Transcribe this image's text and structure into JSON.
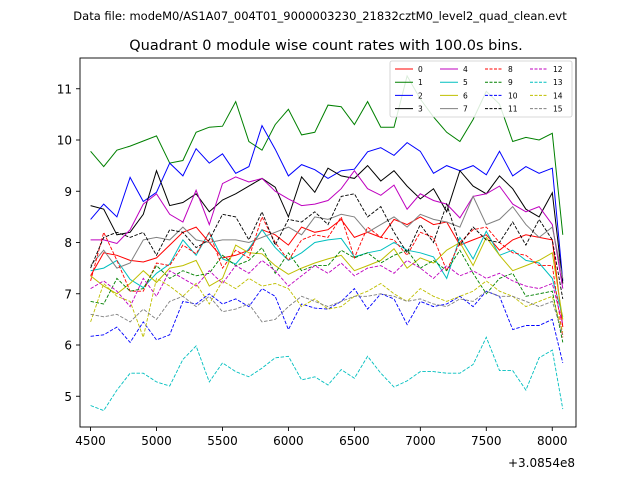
{
  "suptitle": "Data file: modeM0/AS1A07_004T01_9000003230_21832cztM0_level2_quad_clean.evt",
  "chart_data": {
    "type": "line",
    "title": "Quadrant 0 module wise count rates with 100.0s bins.",
    "xlabel": "",
    "ylabel": "",
    "x_offset_label": "+3.0854e8",
    "xlim": [
      4420,
      8180
    ],
    "ylim": [
      4.4,
      11.6
    ],
    "xticks": [
      4500,
      5000,
      5500,
      6000,
      6500,
      7000,
      7500,
      8000
    ],
    "yticks": [
      5,
      6,
      7,
      8,
      9,
      10,
      11
    ],
    "legend_position": "upper-right",
    "legend_columns": 4,
    "x": [
      4500,
      4600,
      4700,
      4800,
      4900,
      5000,
      5100,
      5200,
      5300,
      5400,
      5500,
      5600,
      5700,
      5800,
      5900,
      6000,
      6100,
      6200,
      6300,
      6400,
      6500,
      6600,
      6700,
      6800,
      6900,
      7000,
      7100,
      7200,
      7300,
      7400,
      7500,
      7600,
      7700,
      7800,
      7900,
      8000,
      8080
    ],
    "series": [
      {
        "name": "0",
        "color": "#ff0000",
        "dash": "solid",
        "values": [
          7.35,
          7.8,
          7.75,
          7.65,
          7.62,
          7.7,
          7.95,
          8.2,
          8.3,
          8.0,
          7.7,
          7.75,
          7.85,
          8.25,
          8.15,
          7.95,
          8.3,
          8.2,
          8.25,
          8.45,
          8.1,
          8.2,
          8.1,
          8.45,
          8.35,
          8.5,
          8.35,
          8.4,
          7.95,
          8.05,
          8.15,
          7.85,
          8.05,
          8.15,
          8.1,
          8.05,
          6.35
        ]
      },
      {
        "name": "1",
        "color": "#008000",
        "dash": "solid",
        "values": [
          9.78,
          9.48,
          9.8,
          9.88,
          9.98,
          10.08,
          9.55,
          9.6,
          10.15,
          10.25,
          10.27,
          10.75,
          9.97,
          9.8,
          10.3,
          10.6,
          10.1,
          10.15,
          10.68,
          10.65,
          10.3,
          10.75,
          10.25,
          10.25,
          11.25,
          10.8,
          10.45,
          10.15,
          9.97,
          10.4,
          10.95,
          10.7,
          9.97,
          10.05,
          10.0,
          10.13,
          8.15
        ]
      },
      {
        "name": "2",
        "color": "#0000ff",
        "dash": "solid",
        "values": [
          8.45,
          8.75,
          8.5,
          9.27,
          8.8,
          8.98,
          9.55,
          9.3,
          9.83,
          9.55,
          9.73,
          9.35,
          9.48,
          10.28,
          9.82,
          9.3,
          9.52,
          9.42,
          9.25,
          9.4,
          9.43,
          9.77,
          9.85,
          9.7,
          9.95,
          9.78,
          9.35,
          9.5,
          9.4,
          9.5,
          9.32,
          9.78,
          9.3,
          9.48,
          9.35,
          9.45,
          7.25
        ]
      },
      {
        "name": "3",
        "color": "#000000",
        "dash": "solid",
        "values": [
          8.72,
          8.65,
          8.15,
          8.2,
          8.55,
          9.4,
          8.72,
          8.78,
          8.95,
          8.6,
          8.83,
          8.95,
          9.1,
          9.25,
          9.08,
          8.5,
          9.28,
          8.98,
          9.45,
          9.3,
          9.25,
          9.5,
          9.2,
          9.4,
          9.1,
          8.85,
          9.05,
          8.6,
          9.4,
          9.1,
          8.95,
          9.3,
          9.05,
          8.65,
          8.5,
          8.97,
          7.2
        ]
      },
      {
        "name": "4",
        "color": "#bf00bf",
        "dash": "solid",
        "values": [
          8.05,
          8.05,
          7.98,
          8.25,
          8.75,
          8.95,
          8.55,
          8.4,
          9.02,
          8.35,
          9.15,
          9.28,
          9.18,
          9.25,
          9.0,
          8.85,
          8.72,
          8.75,
          8.82,
          9.05,
          9.4,
          9.05,
          8.92,
          9.12,
          8.65,
          8.95,
          8.82,
          8.75,
          8.48,
          8.9,
          8.95,
          9.1,
          8.75,
          8.6,
          8.7,
          8.35,
          7.1
        ]
      },
      {
        "name": "5",
        "color": "#00bfbf",
        "dash": "solid",
        "values": [
          7.45,
          7.5,
          7.65,
          7.28,
          7.12,
          7.4,
          7.58,
          8.05,
          7.75,
          8.2,
          7.68,
          7.58,
          7.88,
          8.25,
          7.9,
          7.65,
          7.8,
          8.0,
          8.05,
          8.08,
          7.72,
          7.8,
          7.85,
          8.0,
          7.85,
          7.8,
          7.72,
          7.3,
          8.1,
          7.68,
          8.22,
          7.75,
          7.85,
          7.65,
          7.6,
          7.3,
          6.55
        ]
      },
      {
        "name": "6",
        "color": "#bfbf00",
        "dash": "solid",
        "values": [
          7.35,
          7.15,
          7.0,
          7.2,
          7.45,
          7.22,
          7.5,
          7.55,
          7.65,
          7.15,
          7.3,
          7.95,
          7.8,
          7.78,
          7.55,
          7.38,
          7.5,
          7.6,
          7.68,
          7.75,
          7.45,
          7.55,
          7.65,
          7.88,
          7.5,
          7.7,
          7.6,
          7.85,
          8.0,
          7.55,
          8.1,
          7.75,
          7.45,
          7.55,
          7.65,
          7.8,
          6.5
        ]
      },
      {
        "name": "7",
        "color": "#808080",
        "dash": "solid",
        "values": [
          7.55,
          7.85,
          7.5,
          7.6,
          8.05,
          8.1,
          8.05,
          8.3,
          8.05,
          8.0,
          8.05,
          8.05,
          8.0,
          8.1,
          8.2,
          8.3,
          8.15,
          8.5,
          8.45,
          8.55,
          8.5,
          8.2,
          8.35,
          8.5,
          8.3,
          8.55,
          8.45,
          8.4,
          8.3,
          8.9,
          8.35,
          8.45,
          8.7,
          8.35,
          8.1,
          8.3,
          7.3
        ]
      },
      {
        "name": "8",
        "color": "#ff0000",
        "dash": "dashed",
        "values": [
          7.25,
          8.2,
          7.65,
          7.05,
          7.05,
          7.6,
          7.55,
          7.95,
          7.78,
          8.2,
          7.5,
          7.85,
          7.7,
          8.5,
          8.0,
          7.65,
          8.05,
          8.15,
          8.1,
          8.5,
          7.7,
          8.3,
          8.1,
          8.05,
          7.75,
          8.2,
          8.1,
          7.45,
          8.0,
          8.25,
          8.3,
          8.0,
          7.8,
          7.75,
          7.55,
          7.55,
          6.15
        ]
      },
      {
        "name": "9",
        "color": "#008000",
        "dash": "dashed",
        "values": [
          6.85,
          6.8,
          7.3,
          7.05,
          7.1,
          7.55,
          7.3,
          7.45,
          7.35,
          7.4,
          7.75,
          7.55,
          7.65,
          7.9,
          7.4,
          7.8,
          7.45,
          7.55,
          7.55,
          7.85,
          7.7,
          7.8,
          7.6,
          7.75,
          7.85,
          7.5,
          7.65,
          7.45,
          7.85,
          7.4,
          7.0,
          7.3,
          7.4,
          6.95,
          7.0,
          7.05,
          6.05
        ]
      },
      {
        "name": "10",
        "color": "#0000ff",
        "dash": "dashed",
        "values": [
          6.17,
          6.2,
          6.35,
          6.05,
          6.45,
          6.1,
          6.2,
          6.85,
          6.8,
          7.0,
          6.8,
          6.9,
          6.75,
          7.1,
          6.95,
          6.3,
          6.8,
          6.72,
          6.7,
          6.85,
          7.1,
          6.7,
          7.0,
          6.9,
          6.4,
          6.85,
          6.75,
          6.8,
          6.95,
          6.75,
          7.05,
          6.95,
          6.3,
          6.38,
          6.38,
          6.5,
          5.65
        ]
      },
      {
        "name": "11",
        "color": "#000000",
        "dash": "dashed",
        "values": [
          7.5,
          8.1,
          8.2,
          8.1,
          8.2,
          7.75,
          8.25,
          8.2,
          7.9,
          8.05,
          8.55,
          8.5,
          8.05,
          8.6,
          7.95,
          8.45,
          8.4,
          8.6,
          8.35,
          8.9,
          8.95,
          8.5,
          8.7,
          8.2,
          7.8,
          8.35,
          8.0,
          8.75,
          7.95,
          8.3,
          8.05,
          8.0,
          8.4,
          7.95,
          8.45,
          8.05,
          6.9
        ]
      },
      {
        "name": "12",
        "color": "#bf00bf",
        "dash": "dashed",
        "values": [
          7.1,
          7.25,
          7.05,
          6.75,
          7.3,
          6.95,
          7.45,
          7.3,
          7.15,
          7.45,
          7.2,
          7.55,
          7.4,
          7.65,
          7.45,
          7.15,
          7.35,
          7.55,
          7.4,
          7.6,
          7.35,
          7.5,
          7.55,
          7.4,
          7.65,
          7.5,
          7.3,
          7.55,
          7.35,
          7.45,
          7.3,
          7.4,
          7.25,
          7.15,
          7.1,
          7.2,
          6.4
        ]
      },
      {
        "name": "13",
        "color": "#00bfbf",
        "dash": "dashed",
        "values": [
          4.82,
          4.72,
          5.12,
          5.45,
          5.45,
          5.28,
          5.2,
          5.72,
          5.98,
          5.28,
          5.65,
          5.48,
          5.38,
          5.55,
          5.75,
          5.78,
          5.32,
          5.38,
          5.22,
          5.52,
          5.35,
          5.78,
          5.45,
          5.18,
          5.3,
          5.48,
          5.48,
          5.45,
          5.45,
          5.62,
          6.15,
          5.5,
          5.5,
          5.12,
          5.75,
          5.9,
          4.75
        ]
      },
      {
        "name": "14",
        "color": "#bfbf00",
        "dash": "dashed",
        "values": [
          6.45,
          7.2,
          6.95,
          6.85,
          6.15,
          7.3,
          7.15,
          6.95,
          7.2,
          6.8,
          7.25,
          7.1,
          7.3,
          7.15,
          7.2,
          7.1,
          6.75,
          6.9,
          6.7,
          6.75,
          6.95,
          7.05,
          7.2,
          7.0,
          6.85,
          7.1,
          6.95,
          6.85,
          6.95,
          7.05,
          7.25,
          7.05,
          6.95,
          6.75,
          6.85,
          6.95,
          6.25
        ]
      },
      {
        "name": "15",
        "color": "#808080",
        "dash": "dashed",
        "values": [
          6.6,
          6.55,
          6.6,
          6.45,
          6.7,
          6.5,
          6.85,
          6.95,
          6.75,
          6.95,
          6.65,
          6.7,
          6.8,
          6.45,
          6.5,
          6.75,
          6.95,
          6.85,
          6.75,
          6.85,
          6.95,
          6.95,
          7.0,
          6.95,
          6.85,
          6.9,
          6.8,
          6.75,
          6.9,
          6.85,
          7.05,
          6.95,
          6.95,
          6.85,
          6.75,
          6.85,
          6.2
        ]
      }
    ]
  }
}
